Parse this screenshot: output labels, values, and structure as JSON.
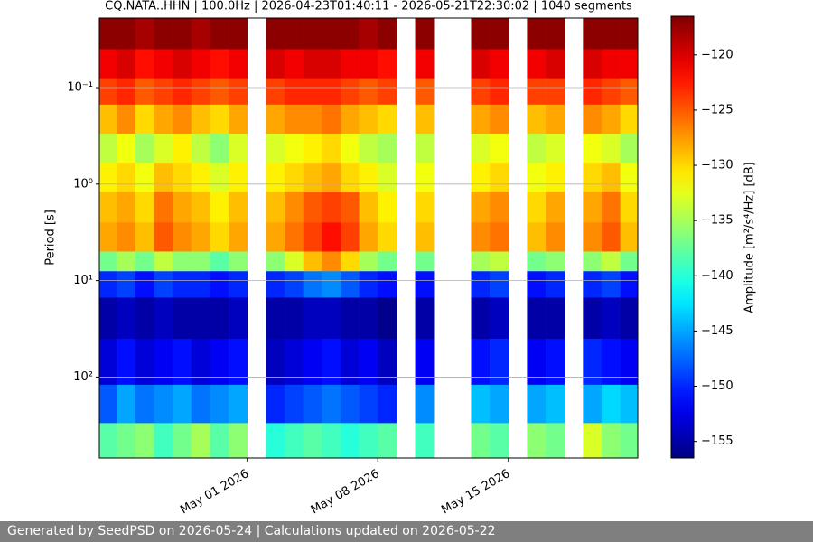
{
  "chart_data": {
    "type": "heatmap",
    "title": "CQ.NATA..HHN | 100.0Hz | 2026-04-23T01:40:11 - 2026-05-21T22:30:02 | 1040 segments",
    "ylabel": "Period [s]",
    "zlabel": "Amplitude [m²/s⁴/Hz] [dB]",
    "xlim": [
      "2026-04-23T01:40:11",
      "2026-05-21T22:30:02"
    ],
    "xticks": [
      {
        "value": "2026-05-01",
        "label": "May 01 2026"
      },
      {
        "value": "2026-05-08",
        "label": "May 08 2026"
      },
      {
        "value": "2026-05-15",
        "label": "May 15 2026"
      }
    ],
    "ylim": [
      0.019,
      690
    ],
    "ylog": true,
    "yinverted": true,
    "yticks": [
      {
        "value": 0.1,
        "label": "10⁻¹"
      },
      {
        "value": 1,
        "label": "10⁰"
      },
      {
        "value": 10,
        "label": "10¹"
      },
      {
        "value": 100,
        "label": "10²"
      }
    ],
    "grid": true,
    "colormap": "jet",
    "zlim": [
      -156.5,
      -116.5
    ],
    "zticks": [
      {
        "value": -120,
        "label": "−120"
      },
      {
        "value": -125,
        "label": "−125"
      },
      {
        "value": -130,
        "label": "−130"
      },
      {
        "value": -135,
        "label": "−135"
      },
      {
        "value": -140,
        "label": "−140"
      },
      {
        "value": -145,
        "label": "−145"
      },
      {
        "value": -150,
        "label": "−150"
      },
      {
        "value": -155,
        "label": "−155"
      }
    ],
    "x": [
      "2026-04-23",
      "2026-04-24",
      "2026-04-25",
      "2026-04-26",
      "2026-04-27",
      "2026-04-28",
      "2026-04-29",
      "2026-04-30",
      "2026-05-01",
      "2026-05-02",
      "2026-05-03",
      "2026-05-04",
      "2026-05-05",
      "2026-05-06",
      "2026-05-07",
      "2026-05-08",
      "2026-05-09",
      "2026-05-10",
      "2026-05-11",
      "2026-05-12",
      "2026-05-13",
      "2026-05-14",
      "2026-05-15",
      "2026-05-16",
      "2026-05-17",
      "2026-05-18",
      "2026-05-19",
      "2026-05-20",
      "2026-05-21"
    ],
    "y_edges": [
      0.019,
      0.04,
      0.08,
      0.15,
      0.3,
      0.6,
      1.2,
      2.5,
      5,
      8,
      15,
      40,
      120,
      300,
      690
    ],
    "z": [
      [
        -117,
        -117,
        -118,
        -117,
        -117,
        -118,
        -117,
        -117,
        null,
        -117,
        -117,
        -117,
        -117,
        -117,
        -118,
        -117,
        null,
        -117,
        null,
        null,
        -117,
        -117,
        null,
        -117,
        -117,
        null,
        -117,
        -117,
        -117
      ],
      [
        -121,
        -120,
        -122,
        -121,
        -120,
        -121,
        -122,
        -121,
        null,
        -120,
        -121,
        -120,
        -120,
        -121,
        -121,
        -122,
        null,
        -121,
        null,
        null,
        -120,
        -121,
        null,
        -121,
        -120,
        null,
        -120,
        -121,
        -121
      ],
      [
        -124,
        -123,
        -125,
        -124,
        -123,
        -124,
        -125,
        -124,
        null,
        -124,
        -123,
        -123,
        -123,
        -124,
        -125,
        -124,
        null,
        -125,
        null,
        null,
        -124,
        -123,
        null,
        -124,
        -124,
        null,
        -123,
        -124,
        -125
      ],
      [
        -129,
        -127,
        -130,
        -128,
        -127,
        -129,
        -130,
        -128,
        null,
        -128,
        -127,
        -127,
        -126,
        -128,
        -129,
        -130,
        null,
        -129,
        null,
        null,
        -128,
        -127,
        null,
        -129,
        -128,
        null,
        -127,
        -128,
        -130
      ],
      [
        -134,
        -132,
        -135,
        -133,
        -131,
        -134,
        -136,
        -133,
        null,
        -133,
        -132,
        -131,
        -130,
        -132,
        -134,
        -135,
        null,
        -134,
        null,
        null,
        -133,
        -132,
        null,
        -134,
        -133,
        null,
        -132,
        -133,
        -135
      ],
      [
        -131,
        -130,
        -132,
        -129,
        -130,
        -131,
        -133,
        -131,
        null,
        -131,
        -130,
        -129,
        -128,
        -130,
        -131,
        -133,
        null,
        -132,
        null,
        null,
        -131,
        -130,
        null,
        -132,
        -131,
        null,
        -130,
        -129,
        -132
      ],
      [
        -129,
        -128,
        -130,
        -126,
        -128,
        -129,
        -131,
        -129,
        null,
        -129,
        -127,
        -125,
        -124,
        -125,
        -129,
        -131,
        null,
        -130,
        null,
        null,
        -128,
        -127,
        null,
        -130,
        -128,
        null,
        -128,
        -126,
        -130
      ],
      [
        -128,
        -127,
        -129,
        -125,
        -127,
        -128,
        -130,
        -128,
        null,
        -128,
        -126,
        -124,
        -122,
        -124,
        -128,
        -130,
        null,
        -129,
        null,
        null,
        -127,
        -126,
        null,
        -129,
        -127,
        null,
        -127,
        -125,
        -129
      ],
      [
        -137,
        -135,
        -137,
        -134,
        -136,
        -136,
        -138,
        -136,
        null,
        -136,
        -133,
        -129,
        -127,
        -130,
        -135,
        -137,
        null,
        -137,
        null,
        null,
        -135,
        -134,
        null,
        -137,
        -136,
        null,
        -136,
        -134,
        -137
      ],
      [
        -150,
        -149,
        -151,
        -149,
        -150,
        -150,
        -151,
        -150,
        null,
        -150,
        -149,
        -147,
        -146,
        -148,
        -150,
        -151,
        null,
        -151,
        null,
        null,
        -150,
        -149,
        null,
        -151,
        -150,
        null,
        -150,
        -149,
        -151
      ],
      [
        -155,
        -154,
        -155,
        -154,
        -155,
        -155,
        -155,
        -154,
        null,
        -155,
        -155,
        -154,
        -154,
        -155,
        -155,
        -156,
        null,
        -155,
        null,
        null,
        -155,
        -154,
        null,
        -155,
        -155,
        null,
        -155,
        -154,
        -155
      ],
      [
        -153,
        -151,
        -153,
        -152,
        -151,
        -153,
        -152,
        -151,
        null,
        -154,
        -153,
        -152,
        -151,
        -153,
        -152,
        -154,
        null,
        -152,
        null,
        null,
        -151,
        -150,
        null,
        -152,
        -151,
        null,
        -150,
        -151,
        -152
      ],
      [
        -148,
        -145,
        -147,
        -146,
        -145,
        -147,
        -146,
        -145,
        null,
        -150,
        -149,
        -148,
        -147,
        -148,
        -149,
        -150,
        null,
        -146,
        null,
        null,
        -144,
        -145,
        null,
        -145,
        -144,
        null,
        -145,
        -143,
        -144
      ],
      [
        -138,
        -137,
        -136,
        -139,
        -137,
        -135,
        -138,
        -136,
        null,
        -140,
        -139,
        -138,
        -139,
        -140,
        -139,
        -138,
        null,
        -139,
        null,
        null,
        -137,
        -138,
        null,
        -136,
        -137,
        null,
        -133,
        -136,
        -137
      ]
    ]
  },
  "footer": "Generated by SeedPSD on 2026-05-24 | Calculations updated on 2026-05-22"
}
